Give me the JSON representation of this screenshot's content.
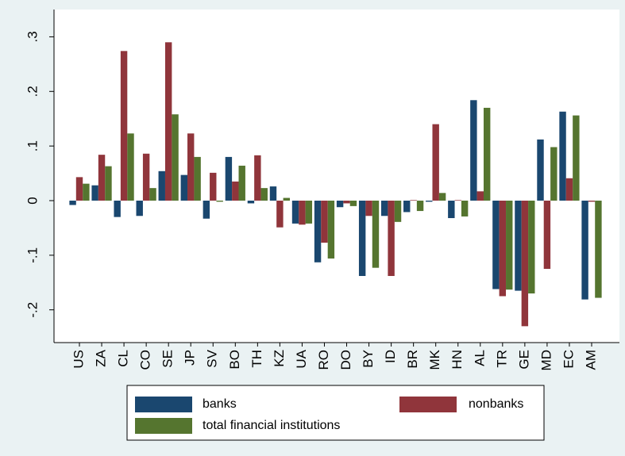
{
  "chart_data": {
    "type": "bar",
    "categories": [
      "US",
      "ZA",
      "CL",
      "CO",
      "SE",
      "JP",
      "SV",
      "BO",
      "TH",
      "KZ",
      "UA",
      "RO",
      "DO",
      "BY",
      "ID",
      "BR",
      "MK",
      "HN",
      "AL",
      "TR",
      "GE",
      "MD",
      "EC",
      "AM"
    ],
    "series": [
      {
        "name": "banks",
        "color": "#1a476f",
        "values": [
          -0.008,
          0.028,
          -0.03,
          -0.028,
          0.054,
          0.047,
          -0.033,
          0.08,
          -0.005,
          0.026,
          -0.042,
          -0.113,
          -0.012,
          -0.138,
          -0.028,
          -0.021,
          -0.002,
          -0.032,
          0.184,
          -0.162,
          -0.165,
          0.112,
          0.163,
          -0.181
        ]
      },
      {
        "name": "nonbanks",
        "color": "#90353b",
        "values": [
          0.043,
          0.084,
          0.274,
          0.086,
          0.29,
          0.123,
          0.051,
          0.035,
          0.083,
          -0.049,
          -0.044,
          -0.077,
          -0.005,
          -0.028,
          -0.138,
          0.001,
          0.14,
          0.001,
          0.017,
          -0.175,
          -0.23,
          -0.125,
          0.041,
          -0.002
        ]
      },
      {
        "name": "total financial institutions",
        "color": "#55752f",
        "values": [
          0.031,
          0.063,
          0.123,
          0.023,
          0.158,
          0.08,
          -0.002,
          0.064,
          0.023,
          0.005,
          -0.042,
          -0.106,
          -0.01,
          -0.123,
          -0.039,
          -0.019,
          0.014,
          -0.029,
          0.17,
          -0.163,
          -0.17,
          0.098,
          0.156,
          -0.178
        ]
      }
    ],
    "ylim": [
      -0.26,
      0.35
    ],
    "yticks": [
      {
        "value": -0.2,
        "label": "-.2"
      },
      {
        "value": -0.1,
        "label": "-.1"
      },
      0,
      {
        "value": 0.1,
        "label": ".1"
      },
      {
        "value": 0.2,
        "label": ".2"
      },
      {
        "value": 0.3,
        "label": ".3"
      }
    ],
    "grid": false
  }
}
